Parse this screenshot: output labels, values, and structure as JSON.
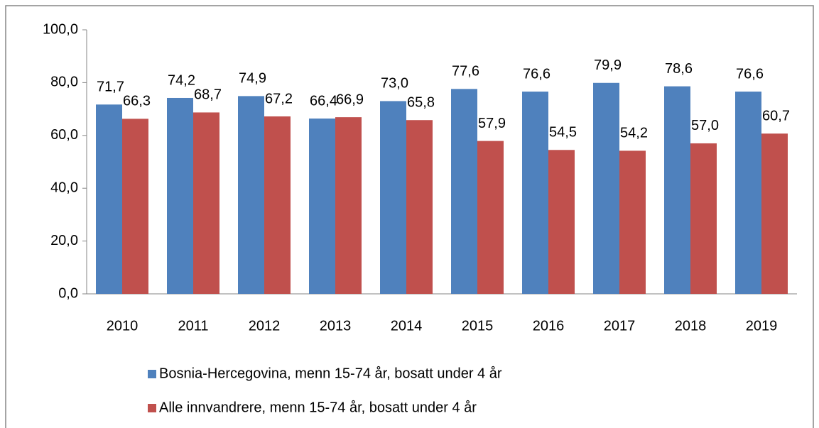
{
  "chart_data": {
    "type": "bar",
    "categories": [
      "2010",
      "2011",
      "2012",
      "2013",
      "2014",
      "2015",
      "2016",
      "2017",
      "2018",
      "2019"
    ],
    "series": [
      {
        "name": "Bosnia-Hercegovina, menn 15-74 år, bosatt under 4 år",
        "color": "#4f81bd",
        "values": [
          71.7,
          74.2,
          74.9,
          66.4,
          73.0,
          77.6,
          76.6,
          79.9,
          78.6,
          76.6
        ],
        "value_labels": [
          "71,7",
          "74,2",
          "74,9",
          "66,4",
          "73,0",
          "77,6",
          "76,6",
          "79,9",
          "78,6",
          "76,6"
        ]
      },
      {
        "name": "Alle innvandrere, menn 15-74 år, bosatt under 4 år",
        "color": "#c0504d",
        "values": [
          66.3,
          68.7,
          67.2,
          66.9,
          65.8,
          57.9,
          54.5,
          54.2,
          57.0,
          60.7
        ],
        "value_labels": [
          "66,3",
          "68,7",
          "67,2",
          "66,9",
          "65,8",
          "57,9",
          "54,5",
          "54,2",
          "57,0",
          "60,7"
        ]
      }
    ],
    "ylim": [
      0,
      100
    ],
    "yticks": [
      {
        "value": 0,
        "label": "0,0"
      },
      {
        "value": 20,
        "label": "20,0"
      },
      {
        "value": 40,
        "label": "40,0"
      },
      {
        "value": 60,
        "label": "60,0"
      },
      {
        "value": 80,
        "label": "80,0"
      },
      {
        "value": 100,
        "label": "100,0"
      }
    ],
    "grid": false,
    "legend": "bottom"
  }
}
